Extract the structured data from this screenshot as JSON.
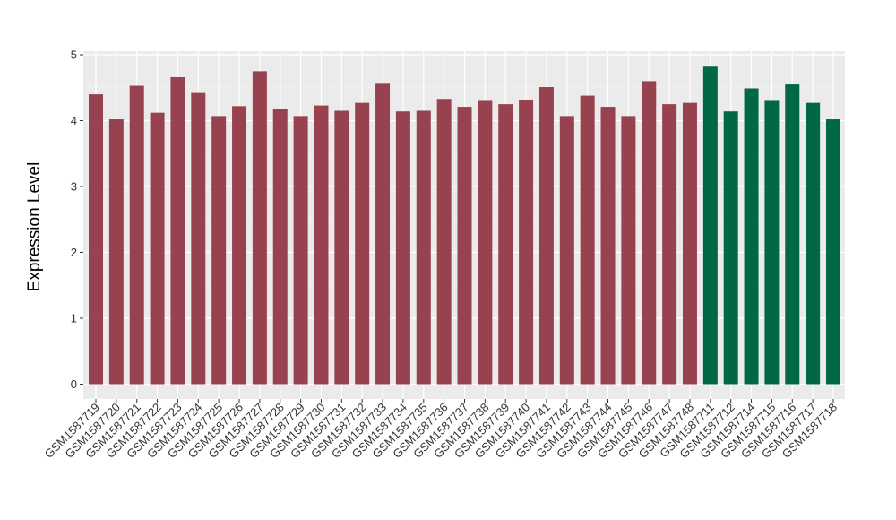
{
  "chart_data": {
    "type": "bar",
    "title": "",
    "xlabel": "",
    "ylabel": "Expression Level",
    "ylim": [
      0,
      5
    ],
    "yticks": [
      0,
      1,
      2,
      3,
      4,
      5
    ],
    "grid": true,
    "background": "#EBEBEB",
    "categories": [
      "GSM1587719",
      "GSM1587720",
      "GSM1587721",
      "GSM1587722",
      "GSM1587723",
      "GSM1587724",
      "GSM1587725",
      "GSM1587726",
      "GSM1587727",
      "GSM1587728",
      "GSM1587729",
      "GSM1587730",
      "GSM1587731",
      "GSM1587732",
      "GSM1587733",
      "GSM1587734",
      "GSM1587735",
      "GSM1587736",
      "GSM1587737",
      "GSM1587738",
      "GSM1587739",
      "GSM1587740",
      "GSM1587741",
      "GSM1587742",
      "GSM1587743",
      "GSM1587744",
      "GSM1587745",
      "GSM1587746",
      "GSM1587747",
      "GSM1587748",
      "GSM1587711",
      "GSM1587712",
      "GSM1587714",
      "GSM1587715",
      "GSM1587716",
      "GSM1587717",
      "GSM1587718"
    ],
    "values": [
      4.4,
      4.02,
      4.53,
      4.12,
      4.66,
      4.42,
      4.07,
      4.22,
      4.75,
      4.17,
      4.07,
      4.23,
      4.15,
      4.27,
      4.56,
      4.14,
      4.15,
      4.33,
      4.21,
      4.3,
      4.25,
      4.32,
      4.51,
      4.07,
      4.38,
      4.21,
      4.07,
      4.6,
      4.25,
      4.27,
      4.82,
      4.14,
      4.49,
      4.3,
      4.55,
      4.27,
      4.02
    ],
    "groups": [
      "a",
      "a",
      "a",
      "a",
      "a",
      "a",
      "a",
      "a",
      "a",
      "a",
      "a",
      "a",
      "a",
      "a",
      "a",
      "a",
      "a",
      "a",
      "a",
      "a",
      "a",
      "a",
      "a",
      "a",
      "a",
      "a",
      "a",
      "a",
      "a",
      "a",
      "b",
      "b",
      "b",
      "b",
      "b",
      "b",
      "b"
    ],
    "group_colors": {
      "a": "#984250",
      "b": "#006747"
    }
  }
}
